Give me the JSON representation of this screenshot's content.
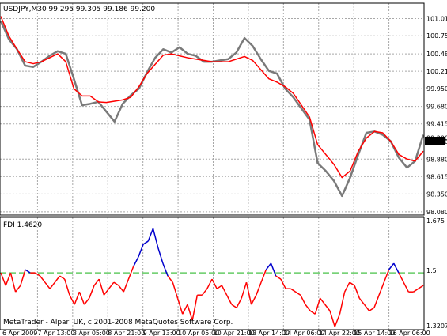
{
  "header": {
    "main_title": "USDJPY,M30  99.295 99.305 99.186 99.200",
    "sub_title": "FDI 1.4620"
  },
  "footer": {
    "copyright": "MetaTrader - Alpari UK, c 2001-2008 MetaQuotes Software Corp."
  },
  "price_badge": "99.200",
  "colors": {
    "price": "#7a7a7a",
    "moving_average": "#ff0000",
    "fdi_low": "#ff0000",
    "fdi_high": "#0000cc",
    "threshold": "#66cc66",
    "grid": "#a8a8a8",
    "badge_bg": "#000000",
    "badge_fg": "#ffffff"
  },
  "chart_data": [
    {
      "type": "line",
      "symbol": "USDJPY",
      "timeframe": "M30",
      "ylim": [
        98.03,
        101.25
      ],
      "y_ticks": [
        "101.015",
        "100.755",
        "100.480",
        "100.215",
        "99.950",
        "99.680",
        "99.415",
        "99.200",
        "98.880",
        "98.615",
        "98.350",
        "98.080"
      ],
      "x_ticks": [
        "6 Apr 2009",
        "7 Apr 13:00",
        "8 Apr 05:00",
        "8 Apr 21:00",
        "9 Apr 13:00",
        "10 Apr 05:00",
        "10 Apr 21:00",
        "13 Apr 14:00",
        "14 Apr 06:00",
        "14 Apr 22:00",
        "15 Apr 14:00",
        "16 Apr 06:00"
      ],
      "grid": true,
      "series": [
        {
          "values": [
            100.98,
            100.7,
            100.55,
            100.3,
            100.28,
            100.36,
            100.45,
            100.52,
            100.48,
            100.1,
            99.7,
            99.72,
            99.75,
            99.6,
            99.45,
            99.72,
            99.85,
            99.95,
            100.2,
            100.42,
            100.55,
            100.5,
            100.58,
            100.48,
            100.45,
            100.36,
            100.36,
            100.38,
            100.4,
            100.5,
            100.72,
            100.6,
            100.4,
            100.22,
            100.18,
            99.95,
            99.82,
            99.65,
            99.48,
            98.82,
            98.7,
            98.55,
            98.32,
            98.6,
            98.95,
            99.28,
            99.3,
            99.25,
            99.15,
            98.9,
            98.75,
            98.85,
            99.25
          ]
        },
        {
          "values": [
            101.05,
            100.75,
            100.55,
            100.36,
            100.33,
            100.36,
            100.42,
            100.48,
            100.36,
            99.95,
            99.84,
            99.84,
            99.75,
            99.74,
            99.76,
            99.78,
            99.82,
            99.98,
            100.18,
            100.32,
            100.46,
            100.48,
            100.45,
            100.42,
            100.4,
            100.38,
            100.36,
            100.36,
            100.36,
            100.4,
            100.44,
            100.38,
            100.24,
            100.1,
            100.05,
            99.98,
            99.88,
            99.7,
            99.52,
            99.1,
            98.95,
            98.8,
            98.6,
            98.7,
            99.0,
            99.2,
            99.3,
            99.28,
            99.15,
            98.95,
            98.88,
            98.85,
            99.0
          ]
        }
      ]
    },
    {
      "type": "line",
      "ylim": [
        1.3207,
        1.675
      ],
      "y_ticks": [
        "1.675",
        "1.5",
        "1.3207"
      ],
      "threshold": 1.5,
      "grid": true,
      "series": [
        {
          "values": [
            1.5,
            1.46,
            1.5,
            1.44,
            1.46,
            1.51,
            1.5,
            1.5,
            1.49,
            1.47,
            1.45,
            1.47,
            1.49,
            1.48,
            1.43,
            1.4,
            1.44,
            1.4,
            1.42,
            1.46,
            1.48,
            1.43,
            1.45,
            1.47,
            1.46,
            1.44,
            1.48,
            1.52,
            1.55,
            1.59,
            1.6,
            1.64,
            1.58,
            1.53,
            1.49,
            1.47,
            1.42,
            1.37,
            1.4,
            1.35,
            1.43,
            1.43,
            1.45,
            1.48,
            1.45,
            1.46,
            1.43,
            1.4,
            1.39,
            1.42,
            1.47,
            1.4,
            1.43,
            1.47,
            1.51,
            1.53,
            1.49,
            1.48,
            1.45,
            1.45,
            1.44,
            1.43,
            1.4,
            1.38,
            1.37,
            1.42,
            1.4,
            1.38,
            1.33,
            1.37,
            1.44,
            1.47,
            1.46,
            1.42,
            1.4,
            1.38,
            1.39,
            1.43,
            1.47,
            1.51,
            1.53,
            1.5,
            1.47,
            1.44,
            1.44,
            1.45,
            1.46
          ]
        }
      ]
    }
  ]
}
